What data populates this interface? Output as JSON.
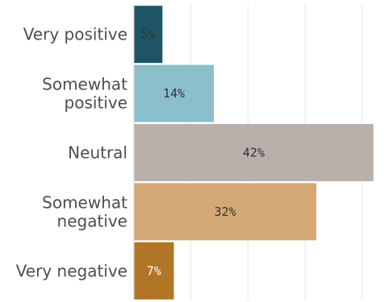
{
  "chart_data": {
    "type": "bar",
    "orientation": "horizontal",
    "categories": [
      [
        "Very positive"
      ],
      [
        "Somewhat",
        "positive"
      ],
      [
        "Neutral"
      ],
      [
        "Somewhat",
        "negative"
      ],
      [
        "Very negative"
      ]
    ],
    "values": [
      5,
      14,
      42,
      32,
      7
    ],
    "value_labels": [
      "5%",
      "14%",
      "42%",
      "32%",
      "7%"
    ],
    "colors": [
      "#1d5566",
      "#8bbfcc",
      "#bab0ab",
      "#d4a874",
      "#b07525"
    ],
    "value_label_colors": [
      "#333333",
      "#333333",
      "#333333",
      "#333333",
      "#ffffff"
    ],
    "xlim": [
      0,
      43
    ],
    "grid_values": [
      10,
      20,
      30,
      40
    ],
    "grid": true,
    "legend": "none"
  }
}
